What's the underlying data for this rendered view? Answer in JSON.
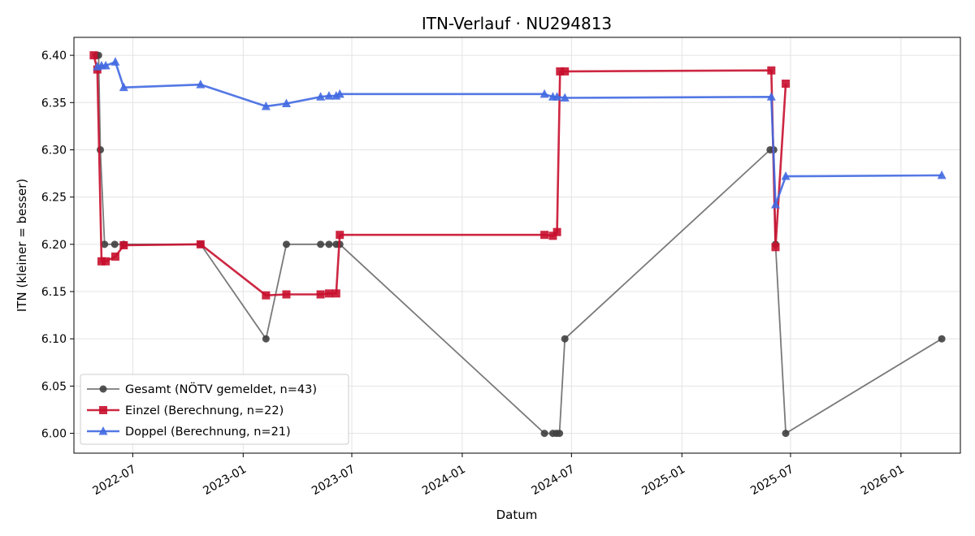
{
  "chart_data": {
    "type": "line",
    "title": "ITN-Verlauf · NU294813",
    "xlabel": "Datum",
    "ylabel": "ITN  (kleiner = besser)",
    "x_type": "date",
    "xlim": [
      "2022-03-25",
      "2026-04-10"
    ],
    "ylim": [
      5.979,
      6.419
    ],
    "x_ticks": [
      "2022-07-01",
      "2023-01-01",
      "2023-07-01",
      "2024-01-01",
      "2024-07-01",
      "2025-01-01",
      "2025-07-01",
      "2026-01-01"
    ],
    "x_tick_labels": [
      "2022-07",
      "2023-01",
      "2023-07",
      "2024-01",
      "2024-07",
      "2025-01",
      "2025-07",
      "2026-01"
    ],
    "y_ticks": [
      6.0,
      6.05,
      6.1,
      6.15,
      6.2,
      6.25,
      6.3,
      6.35,
      6.4
    ],
    "y_tick_labels": [
      "6.00",
      "6.05",
      "6.10",
      "6.15",
      "6.20",
      "6.25",
      "6.30",
      "6.35",
      "6.40"
    ],
    "grid": true,
    "legend_position": "lower-left",
    "series": [
      {
        "name": "Gesamt (NÖTV gemeldet, n=43)",
        "color": "#404040",
        "marker": "circle",
        "points": [
          [
            "2022-05-01",
            6.4
          ],
          [
            "2022-05-05",
            6.4
          ],
          [
            "2022-05-08",
            6.3
          ],
          [
            "2022-05-15",
            6.2
          ],
          [
            "2022-06-01",
            6.2
          ],
          [
            "2022-06-16",
            6.2
          ],
          [
            "2022-10-22",
            6.2
          ],
          [
            "2023-02-08",
            6.1
          ],
          [
            "2023-03-14",
            6.2
          ],
          [
            "2023-05-10",
            6.2
          ],
          [
            "2023-05-24",
            6.2
          ],
          [
            "2023-06-05",
            6.2
          ],
          [
            "2023-06-11",
            6.2
          ],
          [
            "2024-05-17",
            6.0
          ],
          [
            "2024-05-31",
            6.0
          ],
          [
            "2024-06-06",
            6.0
          ],
          [
            "2024-06-11",
            6.0
          ],
          [
            "2024-06-20",
            6.1
          ],
          [
            "2025-05-28",
            6.3
          ],
          [
            "2025-06-03",
            6.3
          ],
          [
            "2025-06-06",
            6.2
          ],
          [
            "2025-06-23",
            6.0
          ],
          [
            "2026-03-10",
            6.1
          ]
        ]
      },
      {
        "name": "Einzel (Berechnung, n=22)",
        "color": "#c8102e",
        "marker": "square",
        "points": [
          [
            "2022-04-27",
            6.4
          ],
          [
            "2022-05-03",
            6.385
          ],
          [
            "2022-05-10",
            6.182
          ],
          [
            "2022-05-17",
            6.182
          ],
          [
            "2022-06-02",
            6.187
          ],
          [
            "2022-06-16",
            6.199
          ],
          [
            "2022-10-22",
            6.2
          ],
          [
            "2023-02-08",
            6.146
          ],
          [
            "2023-03-14",
            6.147
          ],
          [
            "2023-05-10",
            6.147
          ],
          [
            "2023-05-24",
            6.148
          ],
          [
            "2023-06-05",
            6.148
          ],
          [
            "2023-06-11",
            6.21
          ],
          [
            "2024-05-17",
            6.21
          ],
          [
            "2024-05-31",
            6.209
          ],
          [
            "2024-06-07",
            6.213
          ],
          [
            "2024-06-12",
            6.383
          ],
          [
            "2024-06-20",
            6.383
          ],
          [
            "2025-05-30",
            6.384
          ],
          [
            "2025-06-06",
            6.197
          ],
          [
            "2025-06-23",
            6.37
          ]
        ]
      },
      {
        "name": "Doppel (Berechnung, n=21)",
        "color": "#4169e1",
        "marker": "triangle",
        "points": [
          [
            "2022-05-03",
            6.388
          ],
          [
            "2022-05-10",
            6.389
          ],
          [
            "2022-05-17",
            6.389
          ],
          [
            "2022-06-02",
            6.393
          ],
          [
            "2022-06-16",
            6.366
          ],
          [
            "2022-10-22",
            6.369
          ],
          [
            "2023-02-08",
            6.346
          ],
          [
            "2023-03-14",
            6.349
          ],
          [
            "2023-05-10",
            6.356
          ],
          [
            "2023-05-24",
            6.357
          ],
          [
            "2023-06-05",
            6.357
          ],
          [
            "2023-06-11",
            6.359
          ],
          [
            "2024-05-17",
            6.359
          ],
          [
            "2024-05-31",
            6.356
          ],
          [
            "2024-06-07",
            6.356
          ],
          [
            "2024-06-20",
            6.355
          ],
          [
            "2025-05-30",
            6.356
          ],
          [
            "2025-06-06",
            6.242
          ],
          [
            "2025-06-23",
            6.272
          ],
          [
            "2026-03-10",
            6.273
          ]
        ]
      }
    ]
  }
}
